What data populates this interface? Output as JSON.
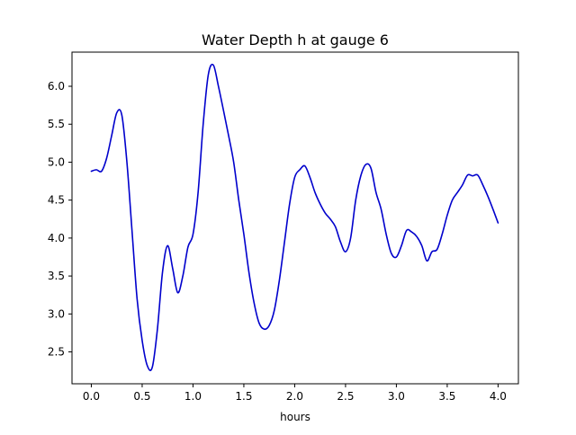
{
  "chart_data": {
    "type": "line",
    "title": "Water Depth h at gauge 6",
    "xlabel": "hours",
    "ylabel": "",
    "xlim": [
      -0.19,
      4.2
    ],
    "ylim": [
      2.08,
      6.45
    ],
    "xticks": [
      0.0,
      0.5,
      1.0,
      1.5,
      2.0,
      2.5,
      3.0,
      3.5,
      4.0
    ],
    "xtick_labels": [
      "0.0",
      "0.5",
      "1.0",
      "1.5",
      "2.0",
      "2.5",
      "3.0",
      "3.5",
      "4.0"
    ],
    "yticks": [
      2.5,
      3.0,
      3.5,
      4.0,
      4.5,
      5.0,
      5.5,
      6.0
    ],
    "ytick_labels": [
      "2.5",
      "3.0",
      "3.5",
      "4.0",
      "4.5",
      "5.0",
      "5.5",
      "6.0"
    ],
    "grid": false,
    "legend": "none",
    "series": [
      {
        "color": "#0000cc",
        "x": [
          0.0,
          0.05,
          0.1,
          0.15,
          0.2,
          0.25,
          0.3,
          0.35,
          0.4,
          0.45,
          0.5,
          0.55,
          0.6,
          0.65,
          0.7,
          0.75,
          0.8,
          0.85,
          0.9,
          0.95,
          1.0,
          1.05,
          1.1,
          1.15,
          1.2,
          1.25,
          1.3,
          1.35,
          1.4,
          1.45,
          1.5,
          1.55,
          1.6,
          1.65,
          1.7,
          1.75,
          1.8,
          1.85,
          1.9,
          1.95,
          2.0,
          2.05,
          2.1,
          2.15,
          2.2,
          2.25,
          2.3,
          2.35,
          2.4,
          2.45,
          2.5,
          2.55,
          2.6,
          2.65,
          2.7,
          2.75,
          2.8,
          2.85,
          2.9,
          2.95,
          3.0,
          3.05,
          3.1,
          3.15,
          3.2,
          3.25,
          3.3,
          3.35,
          3.4,
          3.45,
          3.5,
          3.55,
          3.6,
          3.65,
          3.7,
          3.75,
          3.8,
          3.85,
          3.9,
          3.95,
          4.0
        ],
        "values": [
          4.88,
          4.9,
          4.88,
          5.05,
          5.35,
          5.65,
          5.62,
          5.0,
          4.1,
          3.2,
          2.65,
          2.32,
          2.3,
          2.8,
          3.55,
          3.9,
          3.6,
          3.28,
          3.5,
          3.88,
          4.05,
          4.6,
          5.5,
          6.15,
          6.28,
          6.0,
          5.68,
          5.35,
          5.0,
          4.5,
          4.05,
          3.55,
          3.15,
          2.88,
          2.8,
          2.85,
          3.05,
          3.45,
          3.95,
          4.45,
          4.8,
          4.9,
          4.95,
          4.8,
          4.6,
          4.45,
          4.33,
          4.25,
          4.15,
          3.95,
          3.82,
          4.0,
          4.5,
          4.82,
          4.97,
          4.92,
          4.6,
          4.38,
          4.05,
          3.8,
          3.75,
          3.9,
          4.1,
          4.08,
          4.02,
          3.9,
          3.7,
          3.82,
          3.85,
          4.05,
          4.3,
          4.5,
          4.6,
          4.7,
          4.83,
          4.82,
          4.83,
          4.7,
          4.55,
          4.38,
          4.2
        ]
      }
    ]
  }
}
